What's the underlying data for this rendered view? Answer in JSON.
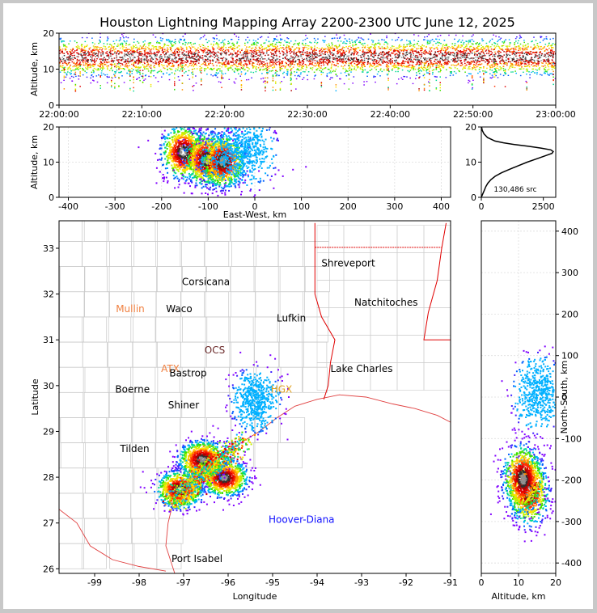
{
  "figure": {
    "title": "Houston Lightning Mapping Array 2200-2300 UTC June 12, 2025"
  },
  "chart_data": [
    {
      "name": "altitude-time",
      "type": "scatter",
      "ylabel": "Altitude, km",
      "xlabel": "",
      "x_ticks": [
        "22:00:00",
        "22:10:00",
        "22:20:00",
        "22:30:00",
        "22:40:00",
        "22:50:00",
        "23:00:00"
      ],
      "xlim": [
        "22:00:00",
        "23:00:00"
      ],
      "y_ticks": [
        0,
        10,
        20
      ],
      "ylim": [
        0,
        20
      ],
      "density_band": {
        "altitude_center": 13.5,
        "altitude_core": [
          10,
          15
        ],
        "altitude_extent": [
          2,
          20
        ]
      },
      "grid": false
    },
    {
      "name": "altitude-east-west",
      "type": "scatter",
      "xlabel": "East-West, km",
      "ylabel": "Altitude, km",
      "x_ticks": [
        -400,
        -300,
        -200,
        -100,
        0,
        100,
        200,
        300,
        400
      ],
      "xlim": [
        -420,
        420
      ],
      "y_ticks": [
        0,
        10,
        20
      ],
      "ylim": [
        0,
        20
      ],
      "clusters": [
        {
          "x": -155,
          "y": 13,
          "core": "white"
        },
        {
          "x": -105,
          "y": 11,
          "core": "gray"
        },
        {
          "x": -70,
          "y": 10.5,
          "core": "gray"
        },
        {
          "x": -30,
          "y": 13,
          "core": "scatter"
        }
      ],
      "grid": true
    },
    {
      "name": "altitude-histogram",
      "type": "line",
      "x_ticks": [
        0,
        2500
      ],
      "xlim": [
        0,
        3000
      ],
      "y_ticks": [
        0,
        10,
        20
      ],
      "ylim": [
        0,
        20
      ],
      "annotation": "130,486 src",
      "profile": [
        {
          "alt": 0,
          "count": 0
        },
        {
          "alt": 1,
          "count": 60
        },
        {
          "alt": 2,
          "count": 120
        },
        {
          "alt": 3,
          "count": 180
        },
        {
          "alt": 4,
          "count": 260
        },
        {
          "alt": 5,
          "count": 380
        },
        {
          "alt": 6,
          "count": 560
        },
        {
          "alt": 7,
          "count": 820
        },
        {
          "alt": 8,
          "count": 1150
        },
        {
          "alt": 9,
          "count": 1500
        },
        {
          "alt": 10,
          "count": 1850
        },
        {
          "alt": 11,
          "count": 2250
        },
        {
          "alt": 12,
          "count": 2650
        },
        {
          "alt": 12.5,
          "count": 2850
        },
        {
          "alt": 13,
          "count": 2900
        },
        {
          "alt": 13.5,
          "count": 2800
        },
        {
          "alt": 14,
          "count": 2400
        },
        {
          "alt": 14.5,
          "count": 1900
        },
        {
          "alt": 15,
          "count": 1350
        },
        {
          "alt": 15.5,
          "count": 900
        },
        {
          "alt": 16,
          "count": 550
        },
        {
          "alt": 17,
          "count": 250
        },
        {
          "alt": 18,
          "count": 110
        },
        {
          "alt": 19,
          "count": 40
        },
        {
          "alt": 20,
          "count": 10
        }
      ],
      "grid": false
    },
    {
      "name": "plan-view-map",
      "type": "scatter",
      "xlabel": "Longitude",
      "ylabel": "Latitude",
      "x_ticks": [
        -99,
        -98,
        -97,
        -96,
        -95,
        -94,
        -93,
        -92,
        -91
      ],
      "xlim": [
        -99.8,
        -91
      ],
      "y_ticks": [
        26,
        27,
        28,
        29,
        30,
        31,
        32,
        33
      ],
      "ylim": [
        25.9,
        33.6
      ],
      "clusters": [
        {
          "lon": -97.1,
          "lat": 27.75,
          "core": "white"
        },
        {
          "lon": -96.1,
          "lat": 28.0,
          "core": "gray"
        },
        {
          "lon": -96.6,
          "lat": 28.4,
          "core": "gray"
        },
        {
          "lon": -95.4,
          "lat": 29.7,
          "core": "scatter"
        }
      ],
      "labels": [
        {
          "text": "Shreveport",
          "lon": -93.3,
          "lat": 32.6,
          "color": "#000000"
        },
        {
          "text": "Corsicana",
          "lon": -96.5,
          "lat": 32.2,
          "color": "#000000"
        },
        {
          "text": "Mullin",
          "lon": -98.2,
          "lat": 31.6,
          "color": "#f08040"
        },
        {
          "text": "Waco",
          "lon": -97.1,
          "lat": 31.6,
          "color": "#000000"
        },
        {
          "text": "Natchitoches",
          "lon": -92.45,
          "lat": 31.75,
          "color": "#000000"
        },
        {
          "text": "Lufkin",
          "lon": -94.58,
          "lat": 31.4,
          "color": "#000000"
        },
        {
          "text": "OCS",
          "lon": -96.3,
          "lat": 30.7,
          "color": "#6b2a2a"
        },
        {
          "text": "ATX",
          "lon": -97.3,
          "lat": 30.3,
          "color": "#f08040"
        },
        {
          "text": "Bastrop",
          "lon": -96.9,
          "lat": 30.2,
          "color": "#000000"
        },
        {
          "text": "Lake Charles",
          "lon": -93.0,
          "lat": 30.3,
          "color": "#000000"
        },
        {
          "text": "Boerne",
          "lon": -98.15,
          "lat": 29.85,
          "color": "#000000"
        },
        {
          "text": "HGX",
          "lon": -94.8,
          "lat": 29.85,
          "color": "#e0a020"
        },
        {
          "text": "Shiner",
          "lon": -97.0,
          "lat": 29.5,
          "color": "#000000"
        },
        {
          "text": "Tilden",
          "lon": -98.1,
          "lat": 28.55,
          "color": "#000000"
        },
        {
          "text": "Hoover-Diana",
          "lon": -94.35,
          "lat": 27.0,
          "color": "#1010ff"
        },
        {
          "text": "Port Isabel",
          "lon": -96.7,
          "lat": 26.15,
          "color": "#000000"
        }
      ],
      "grid": false
    },
    {
      "name": "north-south-altitude",
      "type": "scatter",
      "xlabel": "Altitude, km",
      "ylabel": "North-South, km",
      "x_ticks": [
        0,
        10,
        20
      ],
      "xlim": [
        0,
        20
      ],
      "y_ticks": [
        -400,
        -300,
        -200,
        -100,
        0,
        100,
        200,
        300,
        400
      ],
      "ylim": [
        -425,
        425
      ],
      "clusters": [
        {
          "x": 12.5,
          "y": -225,
          "core": "white"
        },
        {
          "x": 11,
          "y": -195,
          "core": "gray"
        },
        {
          "x": 15,
          "y": 10,
          "core": "scatter"
        }
      ],
      "grid": true
    }
  ]
}
